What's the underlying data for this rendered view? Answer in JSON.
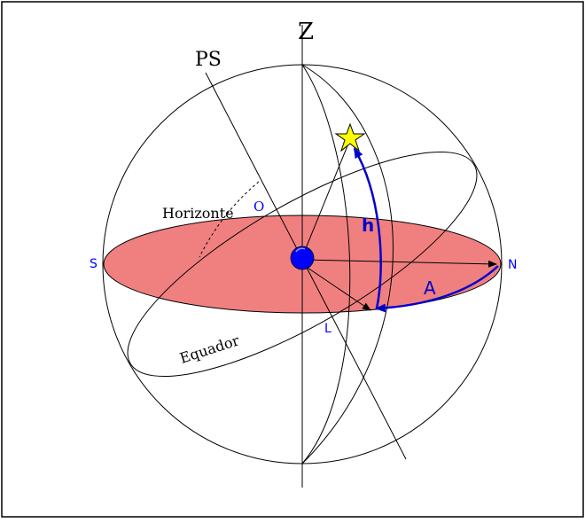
{
  "labels": {
    "zenith": "Z",
    "south_pole": "PS",
    "west": "O",
    "horizon": "Horizonte",
    "south": "S",
    "north": "N",
    "altitude": "h",
    "azimuth": "A",
    "east": "L",
    "equator": "Equador"
  },
  "colors": {
    "horizon_fill": "#f08080",
    "arc_blue": "#0000cc",
    "observer_blue": "#0000ff",
    "star_fill": "#ffff00",
    "label_blue": "#0000ff",
    "line": "#000000"
  },
  "icons": {
    "star": "star-icon",
    "observer": "observer-dot"
  }
}
